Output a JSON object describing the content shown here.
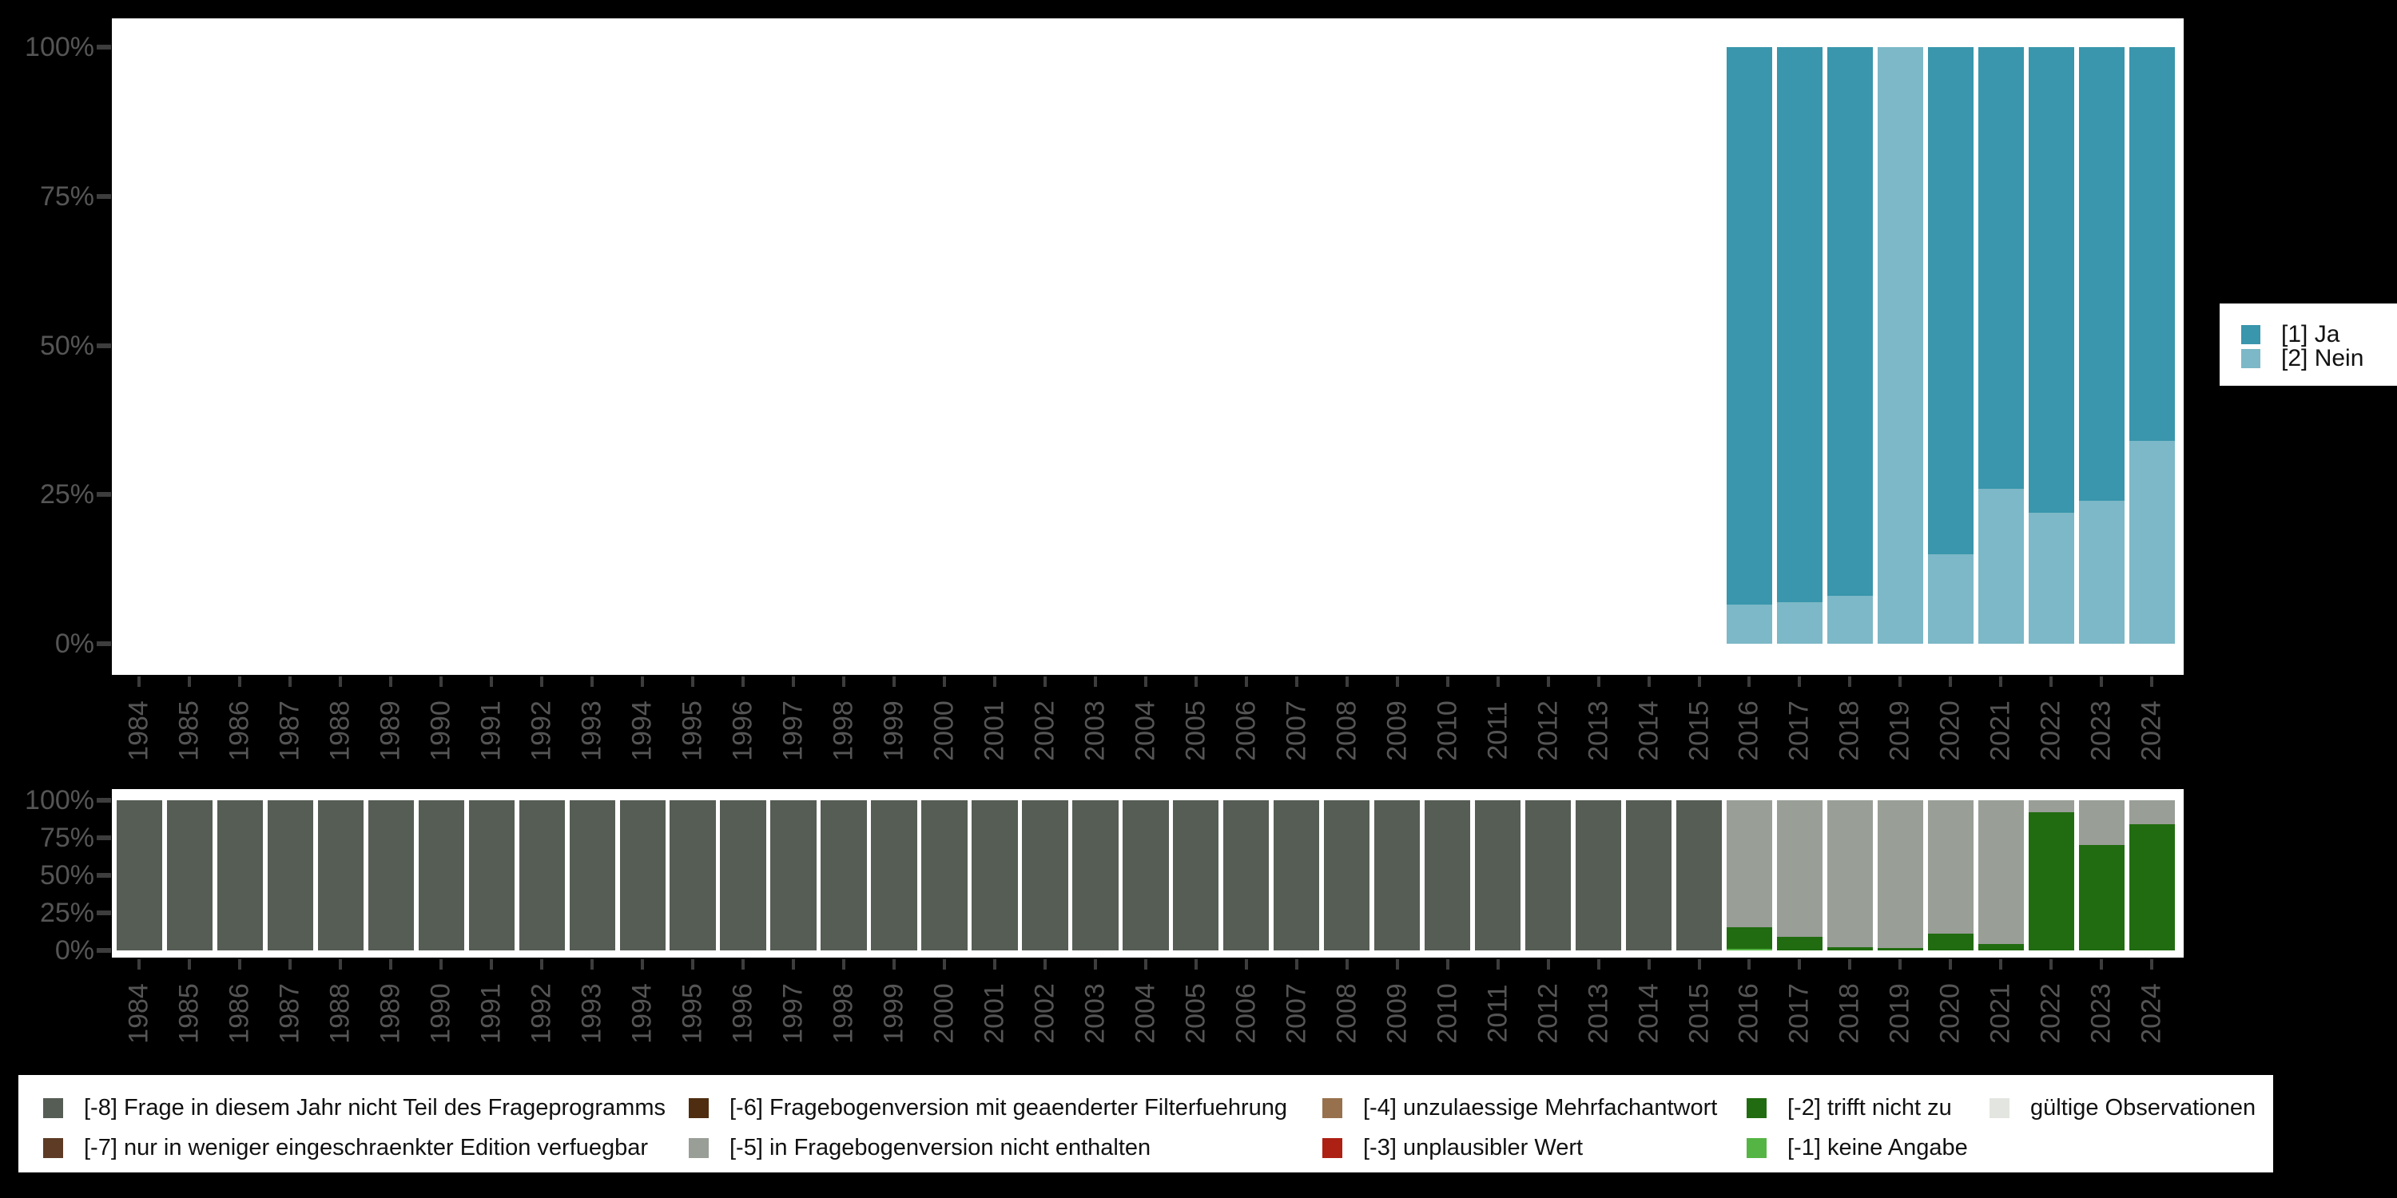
{
  "page": {
    "background": "#000000",
    "panel_background": "#ffffff"
  },
  "axes": {
    "y_tick_labels": [
      "100%",
      "75%",
      "50%",
      "25%",
      "0%"
    ],
    "years": [
      "1984",
      "1985",
      "1986",
      "1987",
      "1988",
      "1989",
      "1990",
      "1991",
      "1992",
      "1993",
      "1994",
      "1995",
      "1996",
      "1997",
      "1998",
      "1999",
      "2000",
      "2001",
      "2002",
      "2003",
      "2004",
      "2005",
      "2006",
      "2007",
      "2008",
      "2009",
      "2010",
      "2011",
      "2012",
      "2013",
      "2014",
      "2015",
      "2016",
      "2017",
      "2018",
      "2019",
      "2020",
      "2021",
      "2022",
      "2023",
      "2024"
    ]
  },
  "chart_data": [
    {
      "type": "bar",
      "stacked": true,
      "percent": true,
      "title": "",
      "xlabel": "",
      "ylabel": "",
      "ylim": [
        0,
        100
      ],
      "grid": false,
      "legend_position": "right",
      "categories": [
        "1984",
        "1985",
        "1986",
        "1987",
        "1988",
        "1989",
        "1990",
        "1991",
        "1992",
        "1993",
        "1994",
        "1995",
        "1996",
        "1997",
        "1998",
        "1999",
        "2000",
        "2001",
        "2002",
        "2003",
        "2004",
        "2005",
        "2006",
        "2007",
        "2008",
        "2009",
        "2010",
        "2011",
        "2012",
        "2013",
        "2014",
        "2015",
        "2016",
        "2017",
        "2018",
        "2019",
        "2020",
        "2021",
        "2022",
        "2023",
        "2024"
      ],
      "series": [
        {
          "name": "[2] Nein",
          "color": "#7cb8c7",
          "values": [
            0,
            0,
            0,
            0,
            0,
            0,
            0,
            0,
            0,
            0,
            0,
            0,
            0,
            0,
            0,
            0,
            0,
            0,
            0,
            0,
            0,
            0,
            0,
            0,
            0,
            0,
            0,
            0,
            0,
            0,
            0,
            0,
            6.5,
            7,
            8,
            100,
            15,
            26,
            22,
            24,
            34
          ]
        },
        {
          "name": "[1] Ja",
          "color": "#3996ac",
          "values": [
            0,
            0,
            0,
            0,
            0,
            0,
            0,
            0,
            0,
            0,
            0,
            0,
            0,
            0,
            0,
            0,
            0,
            0,
            0,
            0,
            0,
            0,
            0,
            0,
            0,
            0,
            0,
            0,
            0,
            0,
            0,
            0,
            93.5,
            93,
            92,
            0,
            85,
            74,
            78,
            76,
            66
          ]
        }
      ]
    },
    {
      "type": "bar",
      "stacked": true,
      "percent": true,
      "title": "",
      "xlabel": "",
      "ylabel": "",
      "ylim": [
        0,
        100
      ],
      "grid": false,
      "legend_position": "bottom",
      "categories": [
        "1984",
        "1985",
        "1986",
        "1987",
        "1988",
        "1989",
        "1990",
        "1991",
        "1992",
        "1993",
        "1994",
        "1995",
        "1996",
        "1997",
        "1998",
        "1999",
        "2000",
        "2001",
        "2002",
        "2003",
        "2004",
        "2005",
        "2006",
        "2007",
        "2008",
        "2009",
        "2010",
        "2011",
        "2012",
        "2013",
        "2014",
        "2015",
        "2016",
        "2017",
        "2018",
        "2019",
        "2020",
        "2021",
        "2022",
        "2023",
        "2024"
      ],
      "series": [
        {
          "name": "[-8] Frage in diesem Jahr nicht Teil des Frageprogramms",
          "color": "#565d55",
          "values": [
            100,
            100,
            100,
            100,
            100,
            100,
            100,
            100,
            100,
            100,
            100,
            100,
            100,
            100,
            100,
            100,
            100,
            100,
            100,
            100,
            100,
            100,
            100,
            100,
            100,
            100,
            100,
            100,
            100,
            100,
            100,
            100,
            0,
            0,
            0,
            0,
            0,
            0,
            0,
            0,
            0
          ]
        },
        {
          "name": "[-1] keine Angabe",
          "color": "#55b544",
          "values": [
            0,
            0,
            0,
            0,
            0,
            0,
            0,
            0,
            0,
            0,
            0,
            0,
            0,
            0,
            0,
            0,
            0,
            0,
            0,
            0,
            0,
            0,
            0,
            0,
            0,
            0,
            0,
            0,
            0,
            0,
            0,
            0,
            1,
            0,
            0,
            0,
            0,
            0,
            0,
            0,
            0
          ]
        },
        {
          "name": "[-2] trifft nicht zu",
          "color": "#216c10",
          "values": [
            0,
            0,
            0,
            0,
            0,
            0,
            0,
            0,
            0,
            0,
            0,
            0,
            0,
            0,
            0,
            0,
            0,
            0,
            0,
            0,
            0,
            0,
            0,
            0,
            0,
            0,
            0,
            0,
            0,
            0,
            0,
            0,
            14.5,
            9,
            2,
            1.5,
            11,
            4.5,
            92,
            70,
            84
          ]
        },
        {
          "name": "[-5] in Fragebogenversion nicht enthalten",
          "color": "#999e97",
          "values": [
            0,
            0,
            0,
            0,
            0,
            0,
            0,
            0,
            0,
            0,
            0,
            0,
            0,
            0,
            0,
            0,
            0,
            0,
            0,
            0,
            0,
            0,
            0,
            0,
            0,
            0,
            0,
            0,
            0,
            0,
            0,
            0,
            84.5,
            91,
            98,
            98.5,
            89,
            95.5,
            8,
            30,
            16
          ]
        }
      ]
    }
  ],
  "top_legend": {
    "items": [
      {
        "label": "[1] Ja",
        "color": "#3996ac"
      },
      {
        "label": "[2] Nein",
        "color": "#7cb8c7"
      }
    ]
  },
  "bottom_legend": {
    "columns": [
      {
        "items": [
          {
            "label": "[-8] Frage in diesem Jahr nicht Teil des Frageprogramms",
            "color": "#565d55"
          },
          {
            "label": "[-7] nur in weniger eingeschraenkter Edition verfuegbar",
            "color": "#5d3b25"
          }
        ]
      },
      {
        "items": [
          {
            "label": "[-6] Fragebogenversion mit geaenderter Filterfuehrung",
            "color": "#4f2d10"
          },
          {
            "label": "[-5] in Fragebogenversion nicht enthalten",
            "color": "#999e97"
          }
        ]
      },
      {
        "items": [
          {
            "label": "[-4] unzulaessige Mehrfachantwort",
            "color": "#97714d"
          },
          {
            "label": "[-3] unplausibler Wert",
            "color": "#ad2014"
          }
        ]
      },
      {
        "items": [
          {
            "label": "[-2] trifft nicht zu",
            "color": "#216c10"
          },
          {
            "label": "[-1] keine Angabe",
            "color": "#55b544"
          }
        ]
      },
      {
        "items": [
          {
            "label": "gültige Observationen",
            "color": "#e3e6e0"
          }
        ]
      }
    ]
  }
}
